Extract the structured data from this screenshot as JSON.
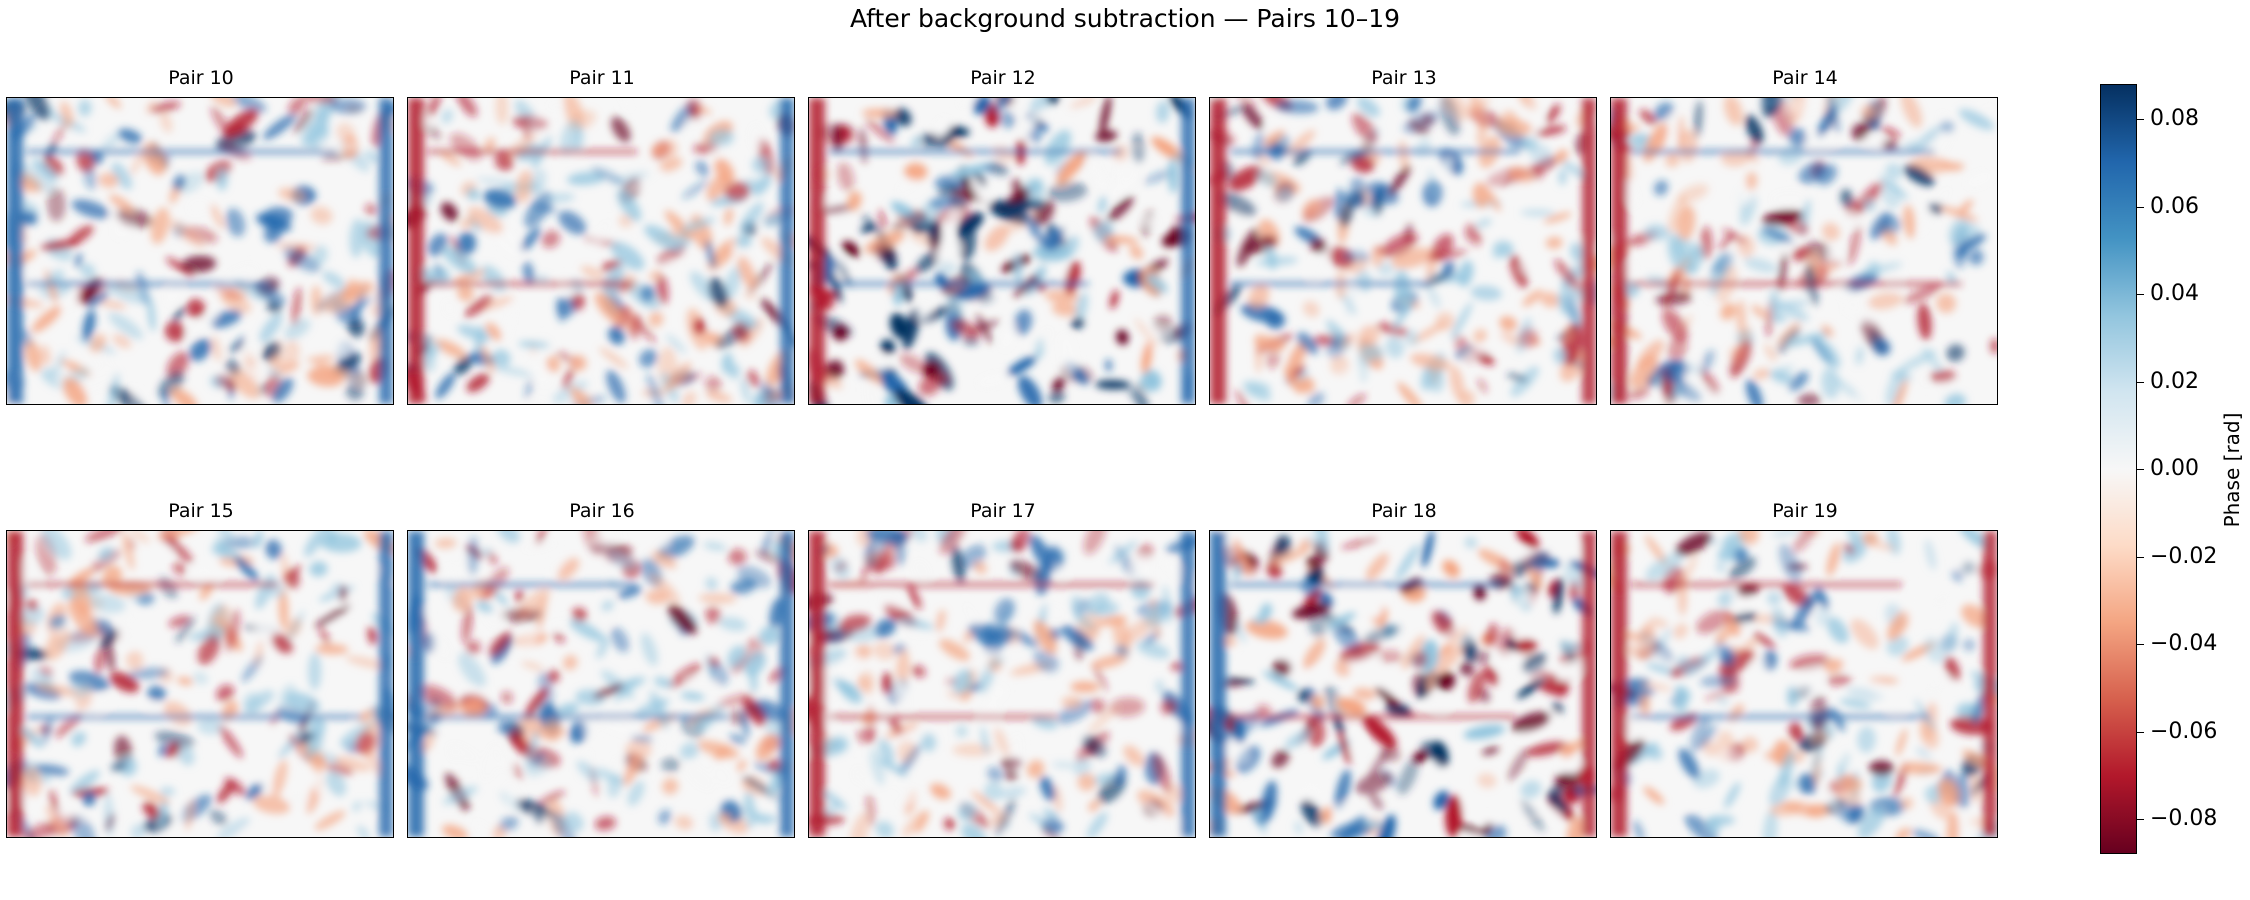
{
  "chart_data": {
    "type": "heatmap",
    "title": "After background subtraction — Pairs 10–19",
    "panels": [
      {
        "title": "Pair 10"
      },
      {
        "title": "Pair 11"
      },
      {
        "title": "Pair 12"
      },
      {
        "title": "Pair 13"
      },
      {
        "title": "Pair 14"
      },
      {
        "title": "Pair 15"
      },
      {
        "title": "Pair 16"
      },
      {
        "title": "Pair 17"
      },
      {
        "title": "Pair 18"
      },
      {
        "title": "Pair 19"
      }
    ],
    "colorbar": {
      "label": "Phase [rad]",
      "colormap": "RdBu",
      "range": [
        -0.088,
        0.088
      ],
      "ticks": [
        "0.08",
        "0.06",
        "0.04",
        "0.02",
        "0.00",
        "−0.02",
        "−0.04",
        "−0.06",
        "−0.08"
      ],
      "tick_values": [
        0.08,
        0.06,
        0.04,
        0.02,
        0.0,
        -0.02,
        -0.04,
        -0.06,
        -0.08
      ]
    },
    "colors": {
      "deep_red": "#67001f",
      "red": "#b2182b",
      "light_red": "#f4a582",
      "neutral": "#f7f7f7",
      "light_blue": "#92c5de",
      "blue": "#2166ac",
      "deep_blue": "#053061"
    }
  }
}
